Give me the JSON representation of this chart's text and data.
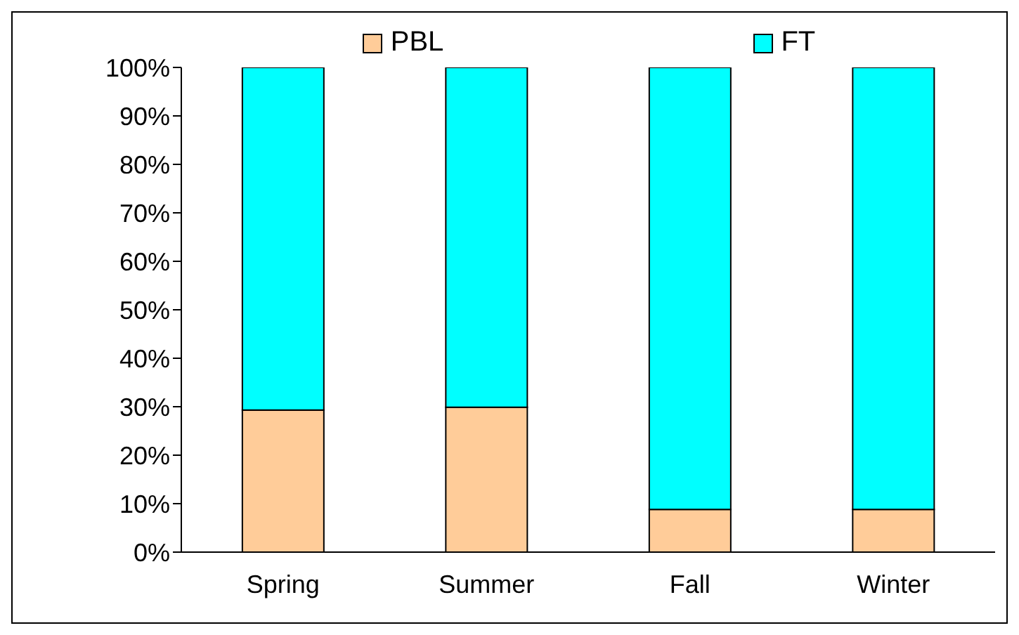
{
  "chart_data": {
    "type": "bar",
    "stacked": true,
    "categories": [
      "Spring",
      "Summer",
      "Fall",
      "Winter"
    ],
    "series": [
      {
        "name": "PBL",
        "color": "#ffcc99",
        "values": [
          29.3,
          29.9,
          8.8,
          8.8
        ]
      },
      {
        "name": "FT",
        "color": "#00ffff",
        "values": [
          70.7,
          70.1,
          91.2,
          91.2
        ]
      }
    ],
    "ylim": [
      0,
      100
    ],
    "yticks": [
      {
        "value": 0,
        "label": "0%"
      },
      {
        "value": 10,
        "label": "10%"
      },
      {
        "value": 20,
        "label": "20%"
      },
      {
        "value": 30,
        "label": "30%"
      },
      {
        "value": 40,
        "label": "40%"
      },
      {
        "value": 50,
        "label": "50%"
      },
      {
        "value": 60,
        "label": "60%"
      },
      {
        "value": 70,
        "label": "70%"
      },
      {
        "value": 80,
        "label": "80%"
      },
      {
        "value": 90,
        "label": "90%"
      },
      {
        "value": 100,
        "label": "100%"
      }
    ],
    "grid": false,
    "legend": "top"
  }
}
